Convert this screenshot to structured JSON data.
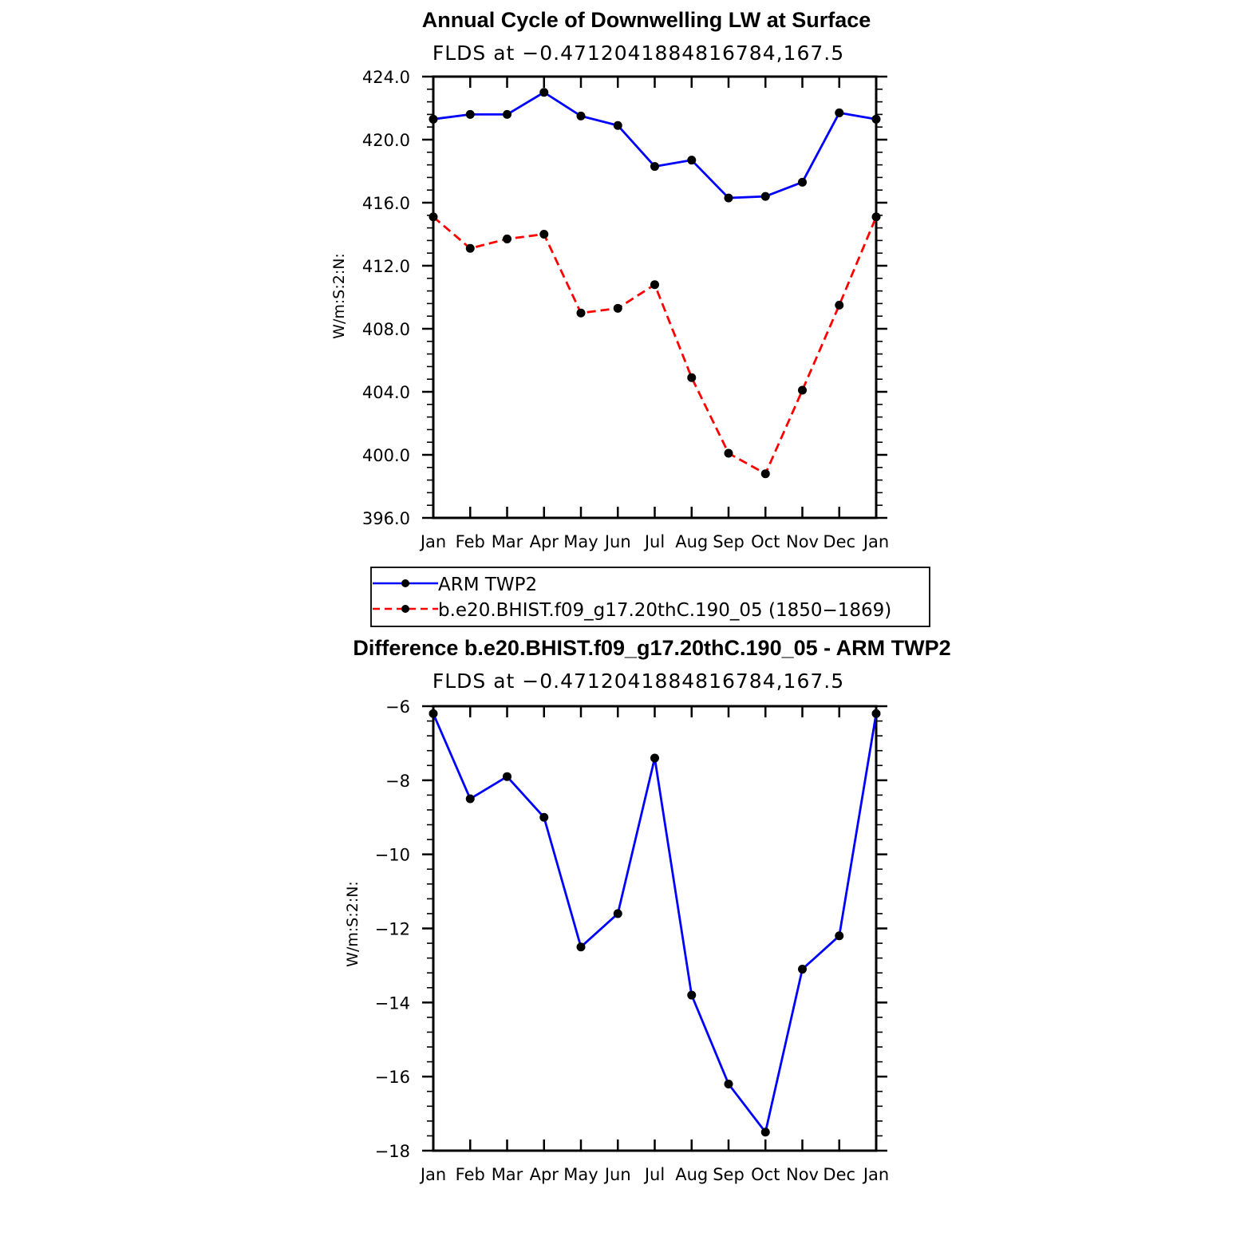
{
  "chart_data": [
    {
      "type": "line",
      "title": "Annual Cycle of Downwelling LW at Surface",
      "subtitle": "FLDS at −0.4712041884816784,167.5",
      "ylabel": "W/m:S:2:N:",
      "categories": [
        "Jan",
        "Feb",
        "Mar",
        "Apr",
        "May",
        "Jun",
        "Jul",
        "Aug",
        "Sep",
        "Oct",
        "Nov",
        "Dec",
        "Jan"
      ],
      "ylim": [
        396.0,
        424.0
      ],
      "yticks": [
        "396.0",
        "400.0",
        "404.0",
        "408.0",
        "412.0",
        "416.0",
        "420.0",
        "424.0"
      ],
      "legend_position": "below",
      "series": [
        {
          "name": "ARM TWP2",
          "color": "#0000ff",
          "dash": "solid",
          "values": [
            421.3,
            421.6,
            421.6,
            423.0,
            421.5,
            420.9,
            418.3,
            418.7,
            416.3,
            416.4,
            417.3,
            421.7,
            421.3
          ]
        },
        {
          "name": "b.e20.BHIST.f09_g17.20thC.190_05 (1850−1869)",
          "color": "#ff0000",
          "dash": "dashed",
          "values": [
            415.1,
            413.1,
            413.7,
            414.0,
            409.0,
            409.3,
            410.8,
            404.9,
            400.1,
            398.8,
            404.1,
            409.5,
            415.1
          ]
        }
      ]
    },
    {
      "type": "line",
      "title": "Difference b.e20.BHIST.f09_g17.20thC.190_05 - ARM TWP2",
      "subtitle": "FLDS at −0.4712041884816784,167.5",
      "ylabel": "W/m:S:2:N:",
      "categories": [
        "Jan",
        "Feb",
        "Mar",
        "Apr",
        "May",
        "Jun",
        "Jul",
        "Aug",
        "Sep",
        "Oct",
        "Nov",
        "Dec",
        "Jan"
      ],
      "ylim": [
        -18,
        -6
      ],
      "yticks": [
        "−18",
        "−16",
        "−14",
        "−12",
        "−10",
        "−8",
        "−6"
      ],
      "series": [
        {
          "color": "#0000ff",
          "dash": "solid",
          "values": [
            -6.2,
            -8.5,
            -7.9,
            -9.0,
            -12.5,
            -11.6,
            -7.4,
            -13.8,
            -16.2,
            -17.5,
            -13.1,
            -12.2,
            -6.2
          ]
        }
      ]
    }
  ]
}
